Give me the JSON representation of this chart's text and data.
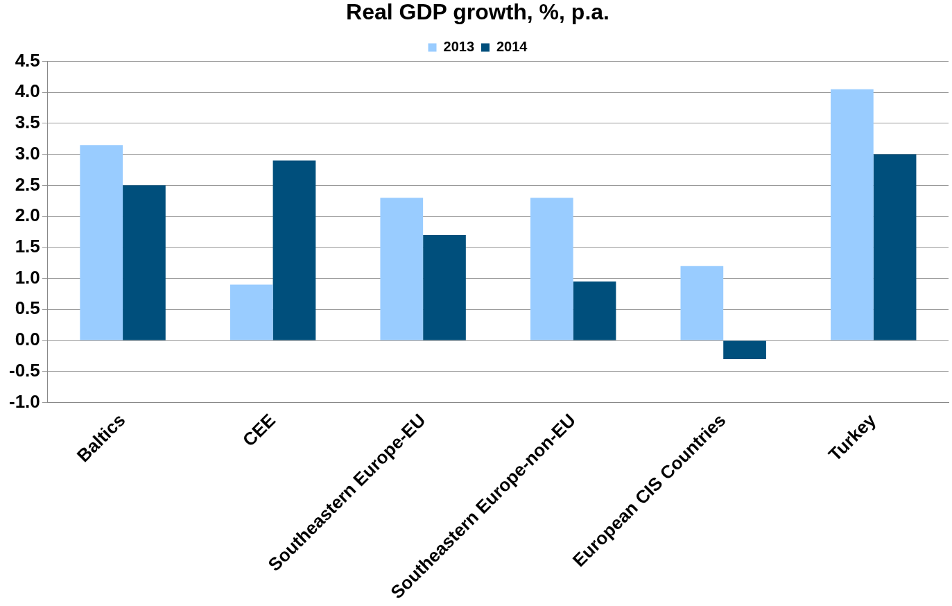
{
  "chart_data": {
    "type": "bar",
    "title": "Real GDP growth, %, p.a.",
    "categories": [
      "Baltics",
      "CEE",
      "Southeastern Europe-EU",
      "Southeastern Europe-non-EU",
      "European CIS Countries",
      "Turkey"
    ],
    "series": [
      {
        "name": "2013",
        "color": "#99ccff",
        "values": [
          3.15,
          0.9,
          2.3,
          2.3,
          1.2,
          4.05
        ]
      },
      {
        "name": "2014",
        "color": "#004f7c",
        "values": [
          2.5,
          2.9,
          1.7,
          0.95,
          -0.3,
          3.0
        ]
      }
    ],
    "ylim": [
      -1.0,
      4.5
    ],
    "yticks": [
      {
        "value": -1,
        "label": "-1.0"
      },
      {
        "value": -0.5,
        "label": "-0.5"
      },
      {
        "value": 0,
        "label": "0.0"
      },
      {
        "value": 0.5,
        "label": "0.5"
      },
      {
        "value": 1,
        "label": "1.0"
      },
      {
        "value": 1.5,
        "label": "1.5"
      },
      {
        "value": 2,
        "label": "2.0"
      },
      {
        "value": 2.5,
        "label": "2.5"
      },
      {
        "value": 3,
        "label": "3.0"
      },
      {
        "value": 3.5,
        "label": "3.5"
      },
      {
        "value": 4,
        "label": "4.0"
      },
      {
        "value": 4.5,
        "label": "4.5"
      }
    ],
    "grid": "y",
    "legend": "top"
  }
}
